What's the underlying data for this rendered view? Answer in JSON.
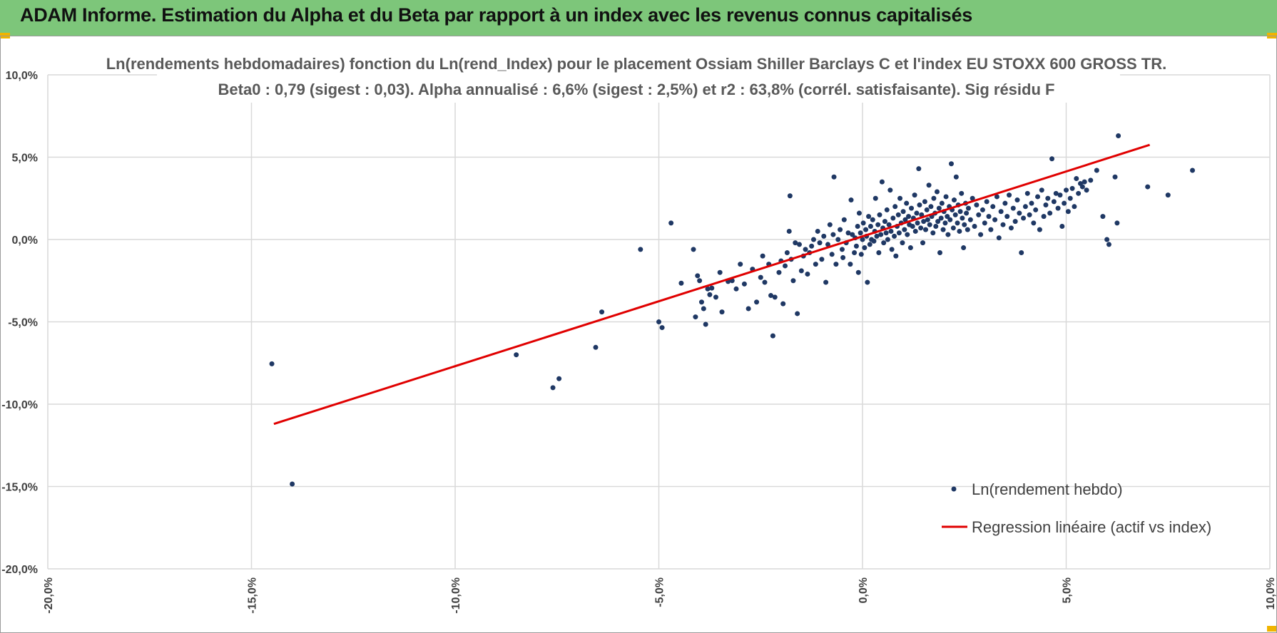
{
  "header": {
    "title": "ADAM Informe. Estimation du Alpha et du Beta par rapport à un index avec les revenus connus capitalisés"
  },
  "colors": {
    "banner": "#7dc67a",
    "points": "#1f3864",
    "regression": "#e00000",
    "grid": "#d9d9d9"
  },
  "chart_data": {
    "type": "scatter",
    "title_line1": "Ln(rendements hebdomadaires) fonction du Ln(rend_Index) pour le placement Ossiam Shiller Barclays C et l'index EU STOXX 600 GROSS TR.",
    "title_line2": "Beta0 : 0,79 (sigest : 0,03).  Alpha annualisé : 6,6% (sigest : 2,5%) et r2 : 63,8% (corrél. satisfaisante). Sig résidu F",
    "xlim": [
      -0.2,
      0.1
    ],
    "ylim": [
      -0.2,
      0.1
    ],
    "x_ticks": [
      "-20,0%",
      "-15,0%",
      "-10,0%",
      "-5,0%",
      "0,0%",
      "5,0%",
      "10,0%"
    ],
    "y_ticks": [
      "10,0%",
      "5,0%",
      "0,0%",
      "-5,0%",
      "-10,0%",
      "-15,0%",
      "-20,0%"
    ],
    "grid": true,
    "legend_position": "bottom-right",
    "series": [
      {
        "name": "Ln(rendement hebdo)",
        "kind": "points",
        "points": [
          [
            -0.145,
            -0.0755
          ],
          [
            -0.14,
            -0.1485
          ],
          [
            -0.085,
            -0.07
          ],
          [
            -0.076,
            -0.09
          ],
          [
            -0.0745,
            -0.0845
          ],
          [
            -0.0655,
            -0.0655
          ],
          [
            -0.064,
            -0.044
          ],
          [
            -0.0545,
            -0.006
          ],
          [
            -0.05,
            -0.05
          ],
          [
            -0.0492,
            -0.0535
          ],
          [
            -0.047,
            0.01
          ],
          [
            -0.0445,
            -0.0265
          ],
          [
            -0.0415,
            -0.006
          ],
          [
            -0.041,
            -0.047
          ],
          [
            -0.0405,
            -0.022
          ],
          [
            -0.04,
            -0.025
          ],
          [
            -0.0395,
            -0.038
          ],
          [
            -0.039,
            -0.042
          ],
          [
            -0.0385,
            -0.0515
          ],
          [
            -0.038,
            -0.03
          ],
          [
            -0.0375,
            -0.0335
          ],
          [
            -0.037,
            -0.0295
          ],
          [
            -0.036,
            -0.035
          ],
          [
            -0.035,
            -0.02
          ],
          [
            -0.0345,
            -0.044
          ],
          [
            -0.033,
            -0.0255
          ],
          [
            -0.032,
            -0.025
          ],
          [
            -0.031,
            -0.03
          ],
          [
            -0.03,
            -0.015
          ],
          [
            -0.029,
            -0.027
          ],
          [
            -0.028,
            -0.042
          ],
          [
            -0.027,
            -0.018
          ],
          [
            -0.026,
            -0.038
          ],
          [
            -0.025,
            -0.023
          ],
          [
            -0.0245,
            -0.01
          ],
          [
            -0.024,
            -0.026
          ],
          [
            -0.023,
            -0.015
          ],
          [
            -0.0225,
            -0.034
          ],
          [
            -0.022,
            -0.0585
          ],
          [
            -0.0215,
            -0.035
          ],
          [
            -0.0205,
            -0.02
          ],
          [
            -0.02,
            -0.013
          ],
          [
            -0.0195,
            -0.039
          ],
          [
            -0.019,
            -0.016
          ],
          [
            -0.0185,
            -0.008
          ],
          [
            -0.018,
            0.005
          ],
          [
            -0.0178,
            0.0265
          ],
          [
            -0.0175,
            -0.012
          ],
          [
            -0.017,
            -0.025
          ],
          [
            -0.0165,
            -0.002
          ],
          [
            -0.016,
            -0.045
          ],
          [
            -0.0155,
            -0.003
          ],
          [
            -0.015,
            -0.019
          ],
          [
            -0.0145,
            -0.01
          ],
          [
            -0.014,
            -0.006
          ],
          [
            -0.0135,
            -0.021
          ],
          [
            -0.013,
            -0.008
          ],
          [
            -0.0125,
            -0.004
          ],
          [
            -0.012,
            0.0
          ],
          [
            -0.0115,
            -0.015
          ],
          [
            -0.011,
            0.005
          ],
          [
            -0.0105,
            -0.002
          ],
          [
            -0.01,
            -0.012
          ],
          [
            -0.0095,
            0.002
          ],
          [
            -0.009,
            -0.026
          ],
          [
            -0.0085,
            -0.003
          ],
          [
            -0.008,
            0.009
          ],
          [
            -0.0075,
            -0.009
          ],
          [
            -0.0072,
            0.003
          ],
          [
            -0.007,
            0.038
          ],
          [
            -0.0065,
            -0.015
          ],
          [
            -0.006,
            0.0
          ],
          [
            -0.0055,
            0.006
          ],
          [
            -0.005,
            -0.006
          ],
          [
            -0.0048,
            -0.011
          ],
          [
            -0.0045,
            0.012
          ],
          [
            -0.004,
            -0.002
          ],
          [
            -0.0035,
            0.004
          ],
          [
            -0.003,
            -0.015
          ],
          [
            -0.0028,
            0.024
          ],
          [
            -0.0025,
            0.003
          ],
          [
            -0.002,
            -0.008
          ],
          [
            -0.0018,
            0.001
          ],
          [
            -0.0015,
            -0.004
          ],
          [
            -0.0012,
            0.008
          ],
          [
            -0.001,
            -0.02
          ],
          [
            -0.0008,
            0.016
          ],
          [
            -0.0005,
            0.004
          ],
          [
            -0.0003,
            -0.009
          ],
          [
            0.0,
            0.0
          ],
          [
            0.0002,
            0.01
          ],
          [
            0.0005,
            -0.005
          ],
          [
            0.0008,
            0.006
          ],
          [
            0.001,
            0.002
          ],
          [
            0.0012,
            -0.026
          ],
          [
            0.0015,
            0.014
          ],
          [
            0.0018,
            -0.003
          ],
          [
            0.002,
            0.008
          ],
          [
            0.0022,
            0.0
          ],
          [
            0.0025,
            0.012
          ],
          [
            0.0028,
            -0.001
          ],
          [
            0.003,
            0.005
          ],
          [
            0.0032,
            0.025
          ],
          [
            0.0035,
            0.002
          ],
          [
            0.0038,
            0.009
          ],
          [
            0.004,
            -0.008
          ],
          [
            0.0042,
            0.015
          ],
          [
            0.0045,
            0.003
          ],
          [
            0.0048,
            0.035
          ],
          [
            0.005,
            0.007
          ],
          [
            0.0052,
            -0.002
          ],
          [
            0.0055,
            0.011
          ],
          [
            0.0058,
            0.004
          ],
          [
            0.006,
            0.018
          ],
          [
            0.0062,
            0.0
          ],
          [
            0.0065,
            0.009
          ],
          [
            0.0068,
            0.03
          ],
          [
            0.007,
            0.005
          ],
          [
            0.0072,
            -0.006
          ],
          [
            0.0075,
            0.013
          ],
          [
            0.0078,
            0.002
          ],
          [
            0.008,
            0.02
          ],
          [
            0.0082,
            -0.01
          ],
          [
            0.0085,
            0.008
          ],
          [
            0.0088,
            0.015
          ],
          [
            0.009,
            0.004
          ],
          [
            0.0092,
            0.025
          ],
          [
            0.0095,
            0.01
          ],
          [
            0.0098,
            -0.002
          ],
          [
            0.01,
            0.017
          ],
          [
            0.0103,
            0.006
          ],
          [
            0.0105,
            0.012
          ],
          [
            0.0108,
            0.022
          ],
          [
            0.011,
            0.003
          ],
          [
            0.0113,
            0.014
          ],
          [
            0.0115,
            0.009
          ],
          [
            0.0118,
            -0.005
          ],
          [
            0.012,
            0.019
          ],
          [
            0.0123,
            0.008
          ],
          [
            0.0125,
            0.013
          ],
          [
            0.0128,
            0.027
          ],
          [
            0.013,
            0.005
          ],
          [
            0.0133,
            0.016
          ],
          [
            0.0135,
            0.01
          ],
          [
            0.0138,
            0.043
          ],
          [
            0.014,
            0.021
          ],
          [
            0.0143,
            0.007
          ],
          [
            0.0145,
            0.015
          ],
          [
            0.0148,
            -0.002
          ],
          [
            0.015,
            0.011
          ],
          [
            0.0153,
            0.023
          ],
          [
            0.0155,
            0.006
          ],
          [
            0.0158,
            0.018
          ],
          [
            0.016,
            0.012
          ],
          [
            0.0163,
            0.033
          ],
          [
            0.0165,
            0.009
          ],
          [
            0.0168,
            0.02
          ],
          [
            0.017,
            0.014
          ],
          [
            0.0173,
            0.004
          ],
          [
            0.0175,
            0.025
          ],
          [
            0.0178,
            0.016
          ],
          [
            0.018,
            0.008
          ],
          [
            0.0183,
            0.029
          ],
          [
            0.0185,
            0.011
          ],
          [
            0.0188,
            0.019
          ],
          [
            0.019,
            -0.008
          ],
          [
            0.0193,
            0.013
          ],
          [
            0.0195,
            0.022
          ],
          [
            0.0198,
            0.006
          ],
          [
            0.02,
            0.017
          ],
          [
            0.0203,
            0.01
          ],
          [
            0.0205,
            0.026
          ],
          [
            0.0208,
            0.014
          ],
          [
            0.021,
            0.003
          ],
          [
            0.0213,
            0.02
          ],
          [
            0.0215,
            0.012
          ],
          [
            0.0218,
            0.046
          ],
          [
            0.022,
            0.018
          ],
          [
            0.0223,
            0.007
          ],
          [
            0.0225,
            0.024
          ],
          [
            0.0228,
            0.015
          ],
          [
            0.023,
            0.038
          ],
          [
            0.0233,
            0.01
          ],
          [
            0.0235,
            0.021
          ],
          [
            0.0238,
            0.005
          ],
          [
            0.024,
            0.017
          ],
          [
            0.0243,
            0.028
          ],
          [
            0.0245,
            0.013
          ],
          [
            0.0248,
            -0.005
          ],
          [
            0.025,
            0.009
          ],
          [
            0.0253,
            0.022
          ],
          [
            0.0255,
            0.016
          ],
          [
            0.0258,
            0.006
          ],
          [
            0.026,
            0.019
          ],
          [
            0.0265,
            0.012
          ],
          [
            0.027,
            0.025
          ],
          [
            0.0275,
            0.008
          ],
          [
            0.028,
            0.021
          ],
          [
            0.0285,
            0.015
          ],
          [
            0.029,
            0.003
          ],
          [
            0.0295,
            0.018
          ],
          [
            0.03,
            0.01
          ],
          [
            0.0305,
            0.023
          ],
          [
            0.031,
            0.014
          ],
          [
            0.0315,
            0.006
          ],
          [
            0.032,
            0.02
          ],
          [
            0.0325,
            0.012
          ],
          [
            0.033,
            0.026
          ],
          [
            0.0335,
            0.001
          ],
          [
            0.034,
            0.017
          ],
          [
            0.0345,
            0.009
          ],
          [
            0.035,
            0.022
          ],
          [
            0.0355,
            0.014
          ],
          [
            0.036,
            0.027
          ],
          [
            0.0365,
            0.007
          ],
          [
            0.037,
            0.019
          ],
          [
            0.0375,
            0.011
          ],
          [
            0.038,
            0.024
          ],
          [
            0.0385,
            0.016
          ],
          [
            0.039,
            -0.008
          ],
          [
            0.0395,
            0.013
          ],
          [
            0.04,
            0.02
          ],
          [
            0.0405,
            0.028
          ],
          [
            0.041,
            0.015
          ],
          [
            0.0415,
            0.022
          ],
          [
            0.042,
            0.01
          ],
          [
            0.0425,
            0.018
          ],
          [
            0.043,
            0.026
          ],
          [
            0.0435,
            0.006
          ],
          [
            0.044,
            0.03
          ],
          [
            0.0445,
            0.014
          ],
          [
            0.045,
            0.021
          ],
          [
            0.0455,
            0.025
          ],
          [
            0.046,
            0.016
          ],
          [
            0.0465,
            0.049
          ],
          [
            0.047,
            0.023
          ],
          [
            0.0475,
            0.028
          ],
          [
            0.048,
            0.019
          ],
          [
            0.0485,
            0.027
          ],
          [
            0.049,
            0.008
          ],
          [
            0.0495,
            0.022
          ],
          [
            0.05,
            0.03
          ],
          [
            0.0505,
            0.017
          ],
          [
            0.051,
            0.025
          ],
          [
            0.0515,
            0.031
          ],
          [
            0.052,
            0.02
          ],
          [
            0.0525,
            0.037
          ],
          [
            0.053,
            0.028
          ],
          [
            0.0535,
            0.034
          ],
          [
            0.054,
            0.032
          ],
          [
            0.0545,
            0.035
          ],
          [
            0.055,
            0.03
          ],
          [
            0.056,
            0.036
          ],
          [
            0.0575,
            0.042
          ],
          [
            0.059,
            0.014
          ],
          [
            0.06,
            0.0
          ],
          [
            0.0605,
            -0.003
          ],
          [
            0.062,
            0.038
          ],
          [
            0.0625,
            0.01
          ],
          [
            0.0628,
            0.063
          ],
          [
            0.07,
            0.032
          ],
          [
            0.075,
            0.027
          ],
          [
            0.081,
            0.042
          ]
        ]
      },
      {
        "name": "Regression linéaire (actif vs index)",
        "kind": "line",
        "points": [
          [
            -0.1445,
            -0.112
          ],
          [
            0.0705,
            0.0575
          ]
        ]
      }
    ]
  }
}
